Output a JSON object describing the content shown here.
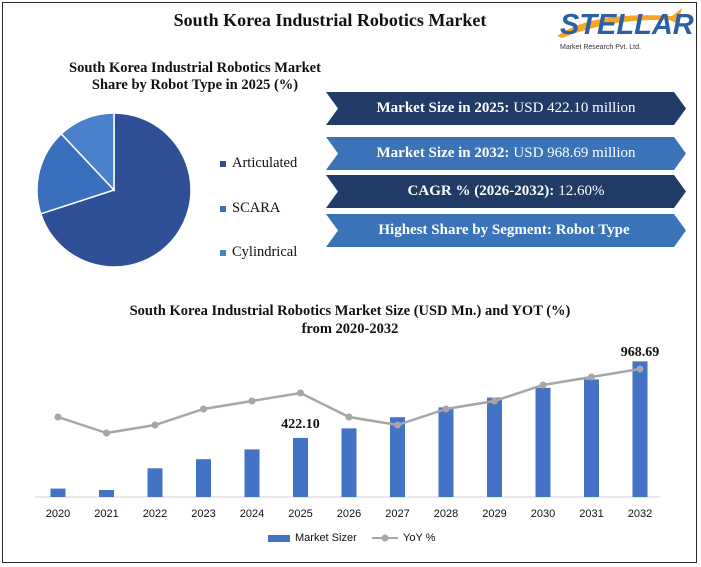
{
  "header": {
    "title": "South Korea Industrial Robotics Market",
    "logo_name": "STELLAR",
    "logo_sub": "Market Research Pvt. Ltd."
  },
  "pie": {
    "title": "South Korea Industrial Robotics Market  Share by Robot Type in 2025 (%)"
  },
  "banners": [
    {
      "label": "Market Size in 2025:",
      "value": "USD  422.10 million",
      "color": "#1f3b66"
    },
    {
      "label": "Market Size in 2032:",
      "value": "USD  968.69 million",
      "color": "#3a73b8"
    },
    {
      "label": "CAGR % (2026-2032):",
      "value": "12.60%",
      "color": "#1f3b66"
    },
    {
      "label": "Highest Share by Segment: Robot Type",
      "value": "",
      "color": "#3a73b8"
    }
  ],
  "bar_chart": {
    "title_line1": "South Korea Industrial Robotics Market Size (USD Mn.) and YOT (%)",
    "title_line2": "from 2020-2032",
    "callout_2025": "422.10",
    "callout_2032": "968.69",
    "legend_bar": "Market Sizer",
    "legend_line": "YoY %"
  },
  "chart_data": [
    {
      "type": "pie",
      "categories": [
        "Articulated",
        "SCARA",
        "Cylindrical"
      ],
      "values": [
        70,
        18,
        12
      ],
      "colors": [
        "#2f4f96",
        "#3a6fbe",
        "#4a7fca"
      ],
      "title": "South Korea Industrial Robotics Market  Share by Robot Type in 2025 (%)"
    },
    {
      "type": "bar",
      "categories": [
        "2020",
        "2021",
        "2022",
        "2023",
        "2024",
        "2025",
        "2026",
        "2027",
        "2028",
        "2029",
        "2030",
        "2031",
        "2032"
      ],
      "series": [
        {
          "name": "Market Sizer",
          "type": "bar",
          "color": "#4472c4",
          "values": [
            60,
            50,
            205,
            270,
            340,
            422.1,
            490,
            570,
            640,
            710,
            780,
            840,
            968.69
          ]
        },
        {
          "name": "YoY %",
          "type": "line",
          "color": "#a6a6a6",
          "values": [
            10.0,
            8.0,
            9.0,
            11.0,
            12.0,
            13.0,
            10.0,
            9.0,
            11.0,
            12.0,
            14.0,
            15.0,
            16.0
          ]
        }
      ],
      "ylim": [
        0,
        1000
      ],
      "title": "South Korea Industrial Robotics Market Size (USD Mn.) and YOT (%) from 2020-2032"
    }
  ]
}
